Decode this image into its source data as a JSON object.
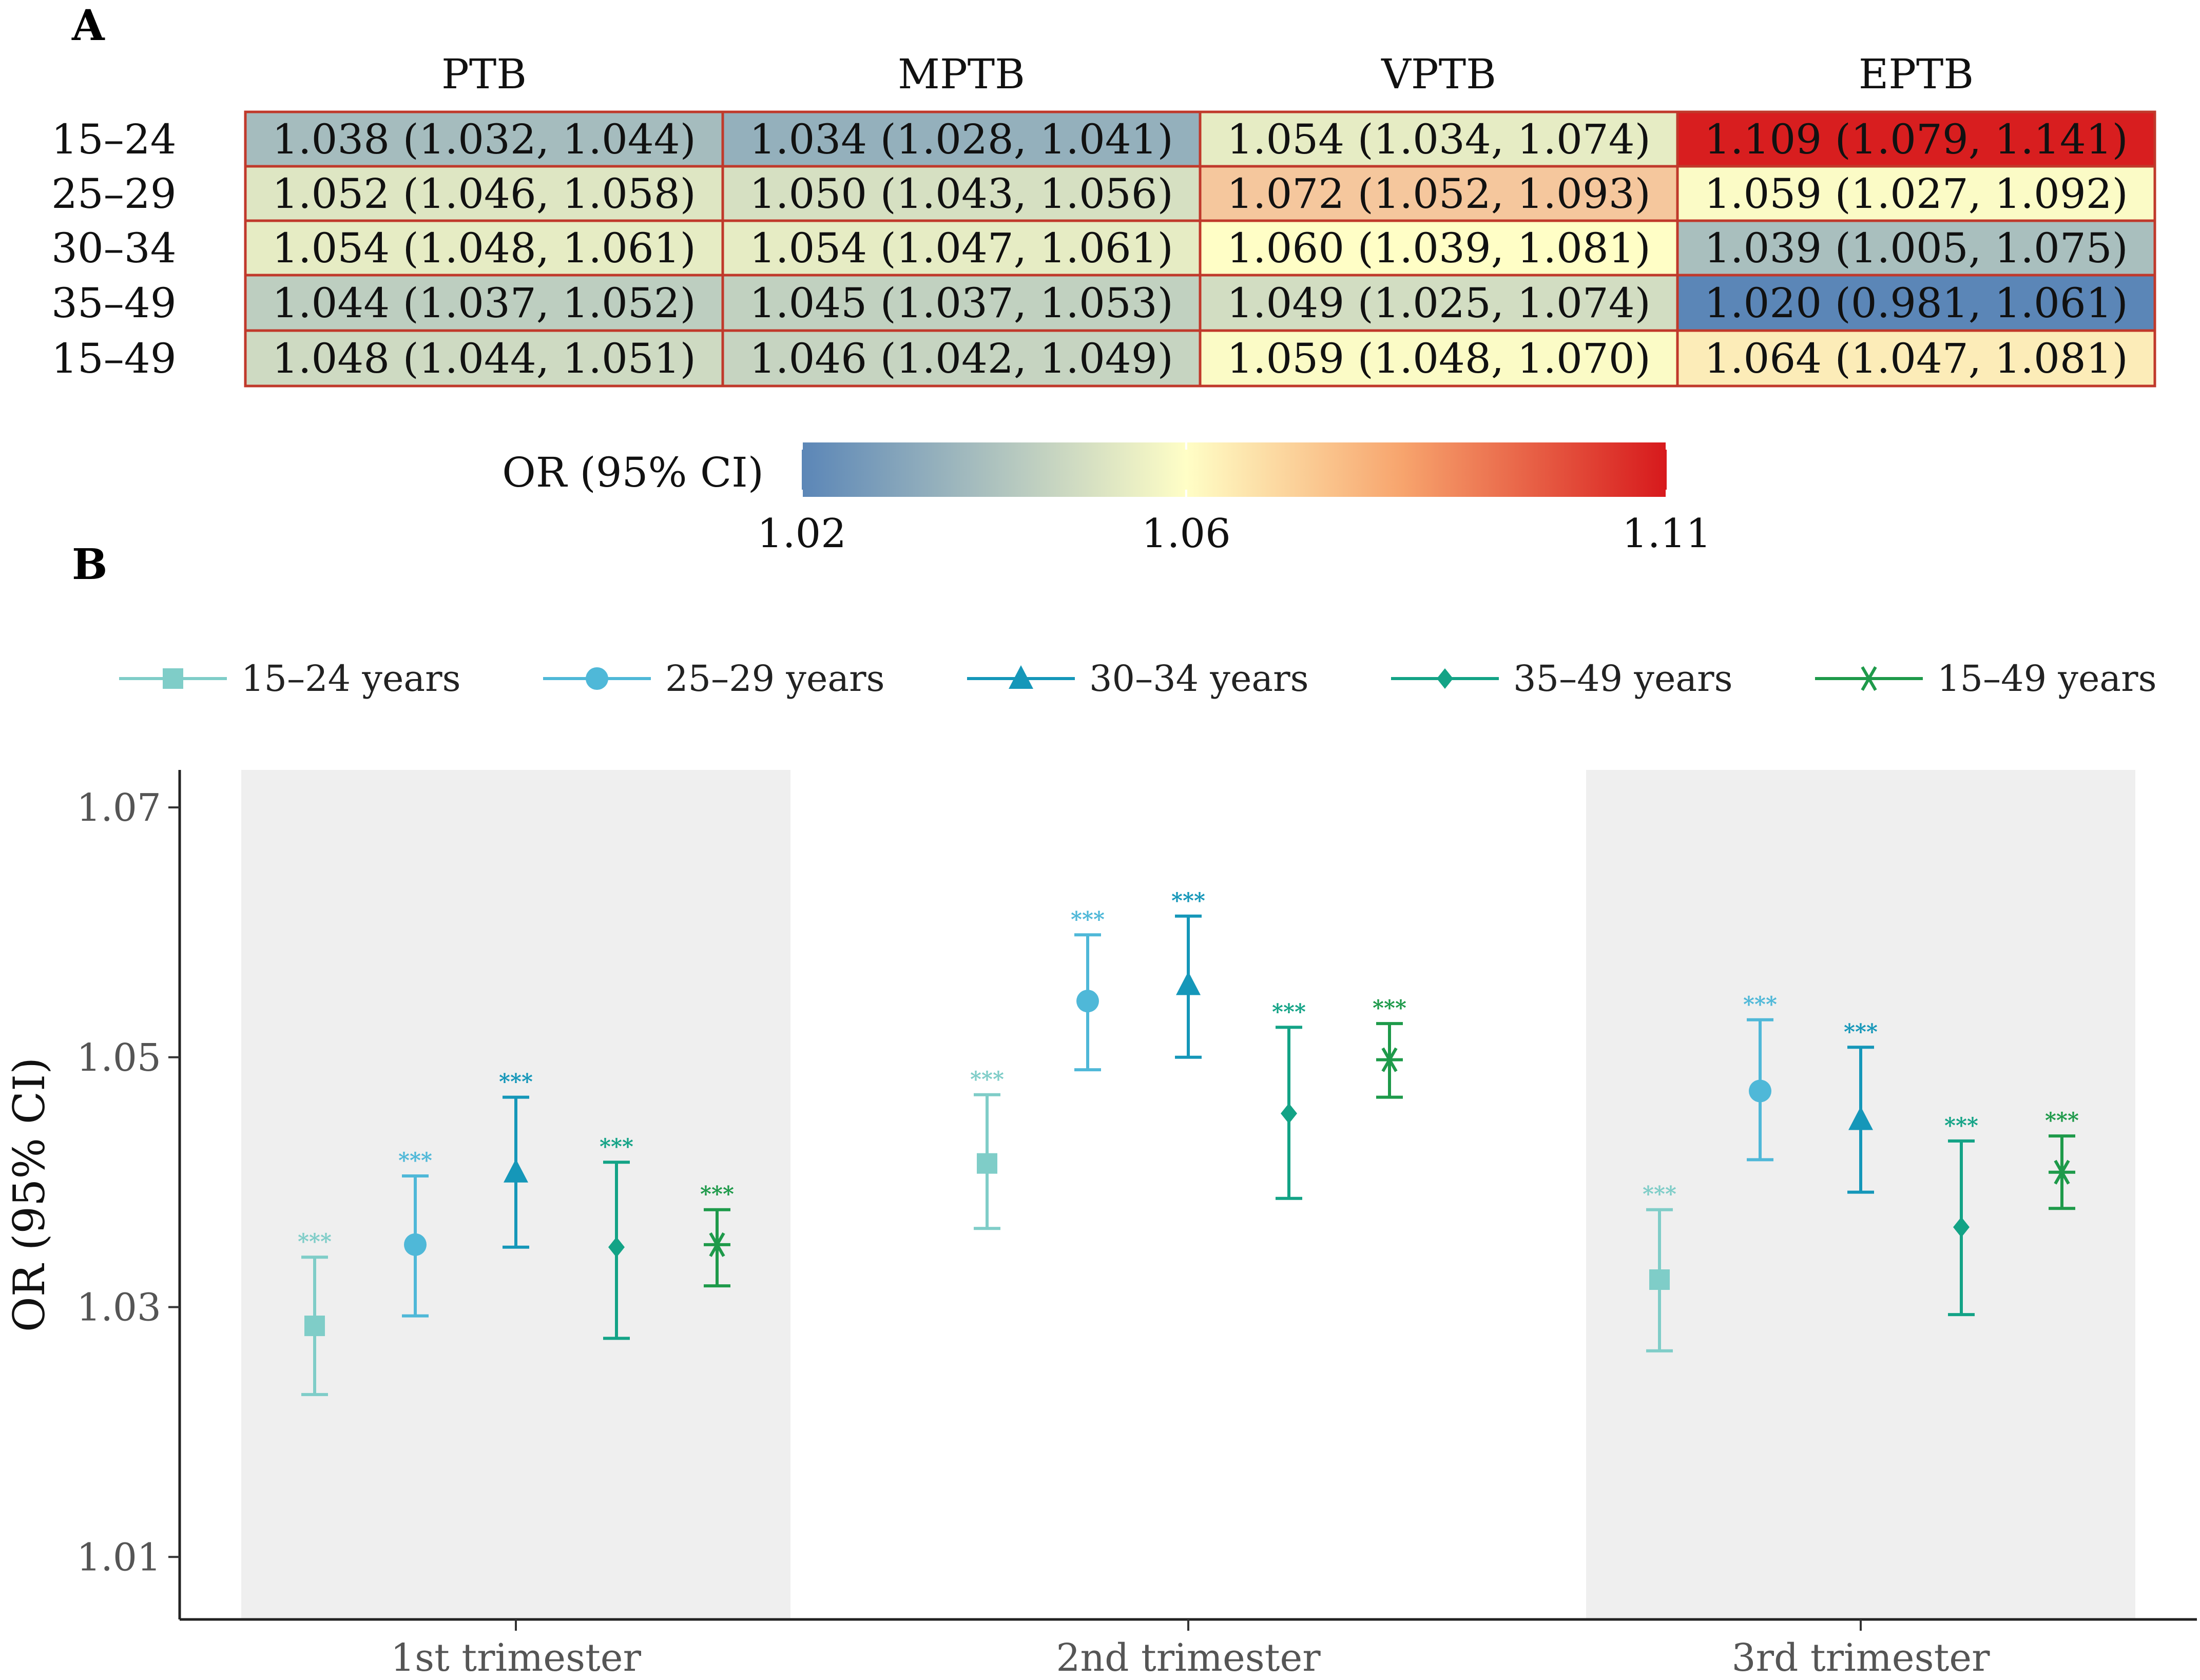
{
  "panels": {
    "a_label": "A",
    "b_label": "B"
  },
  "heatmap": {
    "columns": [
      "PTB",
      "MPTB",
      "VPTB",
      "EPTB"
    ],
    "rows": [
      {
        "label": "15–24",
        "cells": [
          {
            "or": 1.038,
            "text": "1.038 (1.032, 1.044)"
          },
          {
            "or": 1.034,
            "text": "1.034 (1.028, 1.041)"
          },
          {
            "or": 1.054,
            "text": "1.054 (1.034, 1.074)"
          },
          {
            "or": 1.109,
            "text": "1.109 (1.079, 1.141)"
          }
        ]
      },
      {
        "label": "25–29",
        "cells": [
          {
            "or": 1.052,
            "text": "1.052 (1.046, 1.058)"
          },
          {
            "or": 1.05,
            "text": "1.050 (1.043, 1.056)"
          },
          {
            "or": 1.072,
            "text": "1.072 (1.052, 1.093)"
          },
          {
            "or": 1.059,
            "text": "1.059 (1.027, 1.092)"
          }
        ]
      },
      {
        "label": "30–34",
        "cells": [
          {
            "or": 1.054,
            "text": "1.054 (1.048, 1.061)"
          },
          {
            "or": 1.054,
            "text": "1.054 (1.047, 1.061)"
          },
          {
            "or": 1.06,
            "text": "1.060 (1.039, 1.081)"
          },
          {
            "or": 1.039,
            "text": "1.039 (1.005, 1.075)"
          }
        ]
      },
      {
        "label": "35–49",
        "cells": [
          {
            "or": 1.044,
            "text": "1.044 (1.037, 1.052)"
          },
          {
            "or": 1.045,
            "text": "1.045 (1.037, 1.053)"
          },
          {
            "or": 1.049,
            "text": "1.049 (1.025, 1.074)"
          },
          {
            "or": 1.02,
            "text": "1.020 (0.981, 1.061)"
          }
        ]
      },
      {
        "label": "15–49",
        "cells": [
          {
            "or": 1.048,
            "text": "1.048 (1.044, 1.051)"
          },
          {
            "or": 1.046,
            "text": "1.046 (1.042, 1.049)"
          },
          {
            "or": 1.059,
            "text": "1.059 (1.048, 1.070)"
          },
          {
            "or": 1.064,
            "text": "1.064 (1.047, 1.081)"
          }
        ]
      }
    ],
    "colorbar": {
      "title": "OR (95% CI)",
      "min": 1.02,
      "mid": 1.06,
      "max": 1.11,
      "ticks": [
        {
          "value": 1.02,
          "label": "1.02"
        },
        {
          "value": 1.06,
          "label": "1.06"
        },
        {
          "value": 1.11,
          "label": "1.11"
        }
      ],
      "colors": {
        "low": "#5b86b7",
        "mid": "#fffec6",
        "high": "#d7191c"
      }
    },
    "border_color": "#c0392b"
  },
  "chart_data": {
    "type": "scatter",
    "subtype": "point-range",
    "ylabel": "OR (95% CI)",
    "xlabel": "",
    "ylim": [
      1.005,
      1.073
    ],
    "yticks": [
      {
        "value": 1.01,
        "label": "1.01"
      },
      {
        "value": 1.03,
        "label": "1.03"
      },
      {
        "value": 1.05,
        "label": "1.05"
      },
      {
        "value": 1.07,
        "label": "1.07"
      }
    ],
    "categories": [
      "1st trimester",
      "2nd trimester",
      "3rd trimester"
    ],
    "shaded_categories": [
      "1st trimester",
      "3rd trimester"
    ],
    "significance_label": "***",
    "legend_position": "top",
    "series": [
      {
        "name": "15–24 years",
        "color": "#7fcdc8",
        "marker": "square",
        "values": [
          1.0285,
          1.0415,
          1.0322
        ],
        "lower": [
          1.023,
          1.0363,
          1.0265
        ],
        "upper": [
          1.034,
          1.047,
          1.0378
        ]
      },
      {
        "name": "25–29 years",
        "color": "#4fb8d8",
        "marker": "circle",
        "values": [
          1.035,
          1.0545,
          1.0473
        ],
        "lower": [
          1.0293,
          1.049,
          1.0418
        ],
        "upper": [
          1.0405,
          1.0598,
          1.053
        ]
      },
      {
        "name": "30–34 years",
        "color": "#1597b9",
        "marker": "triangle",
        "values": [
          1.0408,
          1.0558,
          1.045
        ],
        "lower": [
          1.0348,
          1.05,
          1.0392
        ],
        "upper": [
          1.0468,
          1.0613,
          1.0508
        ]
      },
      {
        "name": "35–49 years",
        "color": "#13a386",
        "marker": "diamond",
        "values": [
          1.0348,
          1.0455,
          1.0364
        ],
        "lower": [
          1.0275,
          1.0387,
          1.0294
        ],
        "upper": [
          1.0416,
          1.0524,
          1.0433
        ]
      },
      {
        "name": "15–49 years",
        "color": "#1e9a4a",
        "marker": "asterisk",
        "values": [
          1.035,
          1.0498,
          1.0408
        ],
        "lower": [
          1.0317,
          1.0468,
          1.0379
        ],
        "upper": [
          1.0378,
          1.0527,
          1.0437
        ]
      }
    ]
  }
}
